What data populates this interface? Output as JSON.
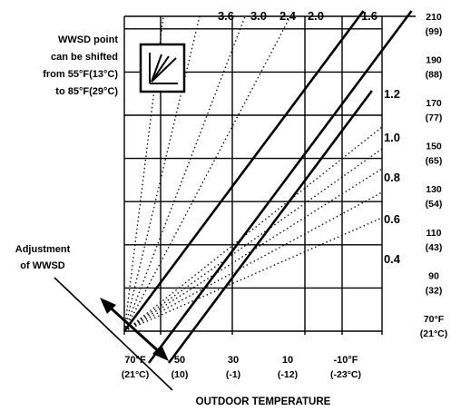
{
  "chart_data": {
    "type": "line",
    "title": "",
    "xlabel": "OUTDOOR TEMPERATURE",
    "ylabel": "",
    "x_direction": "decreasing",
    "xlim": [
      70,
      -14
    ],
    "ylim": [
      70,
      214
    ],
    "grid": true,
    "x_ticks": [
      {
        "value": 70,
        "label": "70°F",
        "sub": "(21°C)"
      },
      {
        "value": 50,
        "label": "50",
        "sub": "(10)"
      },
      {
        "value": 30,
        "label": "30",
        "sub": "(-1)"
      },
      {
        "value": 10,
        "label": "10",
        "sub": "(-12)"
      },
      {
        "value": -10,
        "label": "-10°F",
        "sub": "(-23°C)"
      }
    ],
    "y_ticks": [
      {
        "value": 210,
        "label": "210",
        "sub": "(99)"
      },
      {
        "value": 190,
        "label": "190",
        "sub": "(88)"
      },
      {
        "value": 170,
        "label": "170",
        "sub": "(77)"
      },
      {
        "value": 150,
        "label": "150",
        "sub": "(65)"
      },
      {
        "value": 130,
        "label": "130",
        "sub": "(54)"
      },
      {
        "value": 110,
        "label": "110",
        "sub": "(43)"
      },
      {
        "value": 90,
        "label": "90",
        "sub": "(32)"
      },
      {
        "value": 70,
        "label": "70°F",
        "sub": "(21°C)"
      }
    ],
    "curve_labels_top": [
      "3.6",
      "3.0",
      "2.4",
      "2.0",
      "1.6"
    ],
    "curve_labels_right": [
      "1.2",
      "1.0",
      "0.8",
      "0.6",
      "0.4"
    ],
    "dotted_curves": [
      {
        "ratio": 3.6,
        "label": ""
      },
      {
        "ratio": 3.0,
        "label": ""
      },
      {
        "ratio": 2.4,
        "label": ""
      },
      {
        "ratio": 2.0,
        "label": ""
      },
      {
        "ratio": 1.2,
        "label": ""
      },
      {
        "ratio": 1.0,
        "label": ""
      },
      {
        "ratio": 0.8,
        "label": ""
      },
      {
        "ratio": 0.6,
        "label": ""
      },
      {
        "ratio": 0.4,
        "label": ""
      }
    ],
    "solid_curves": [
      {
        "ratio": 1.6,
        "start": [
          70,
          70
        ]
      },
      {
        "ratio": 1.6,
        "start": [
          54.5,
          70
        ]
      },
      {
        "ratio": 1.6,
        "start": [
          40,
          70
        ]
      }
    ],
    "annotations": {
      "shift_note": [
        "WWSD point",
        "can be shifted",
        "from 55°F(13°C)",
        "to 85°F(29°C)"
      ],
      "adjustment_note": [
        "Adjustment",
        "of WWSD"
      ]
    }
  }
}
